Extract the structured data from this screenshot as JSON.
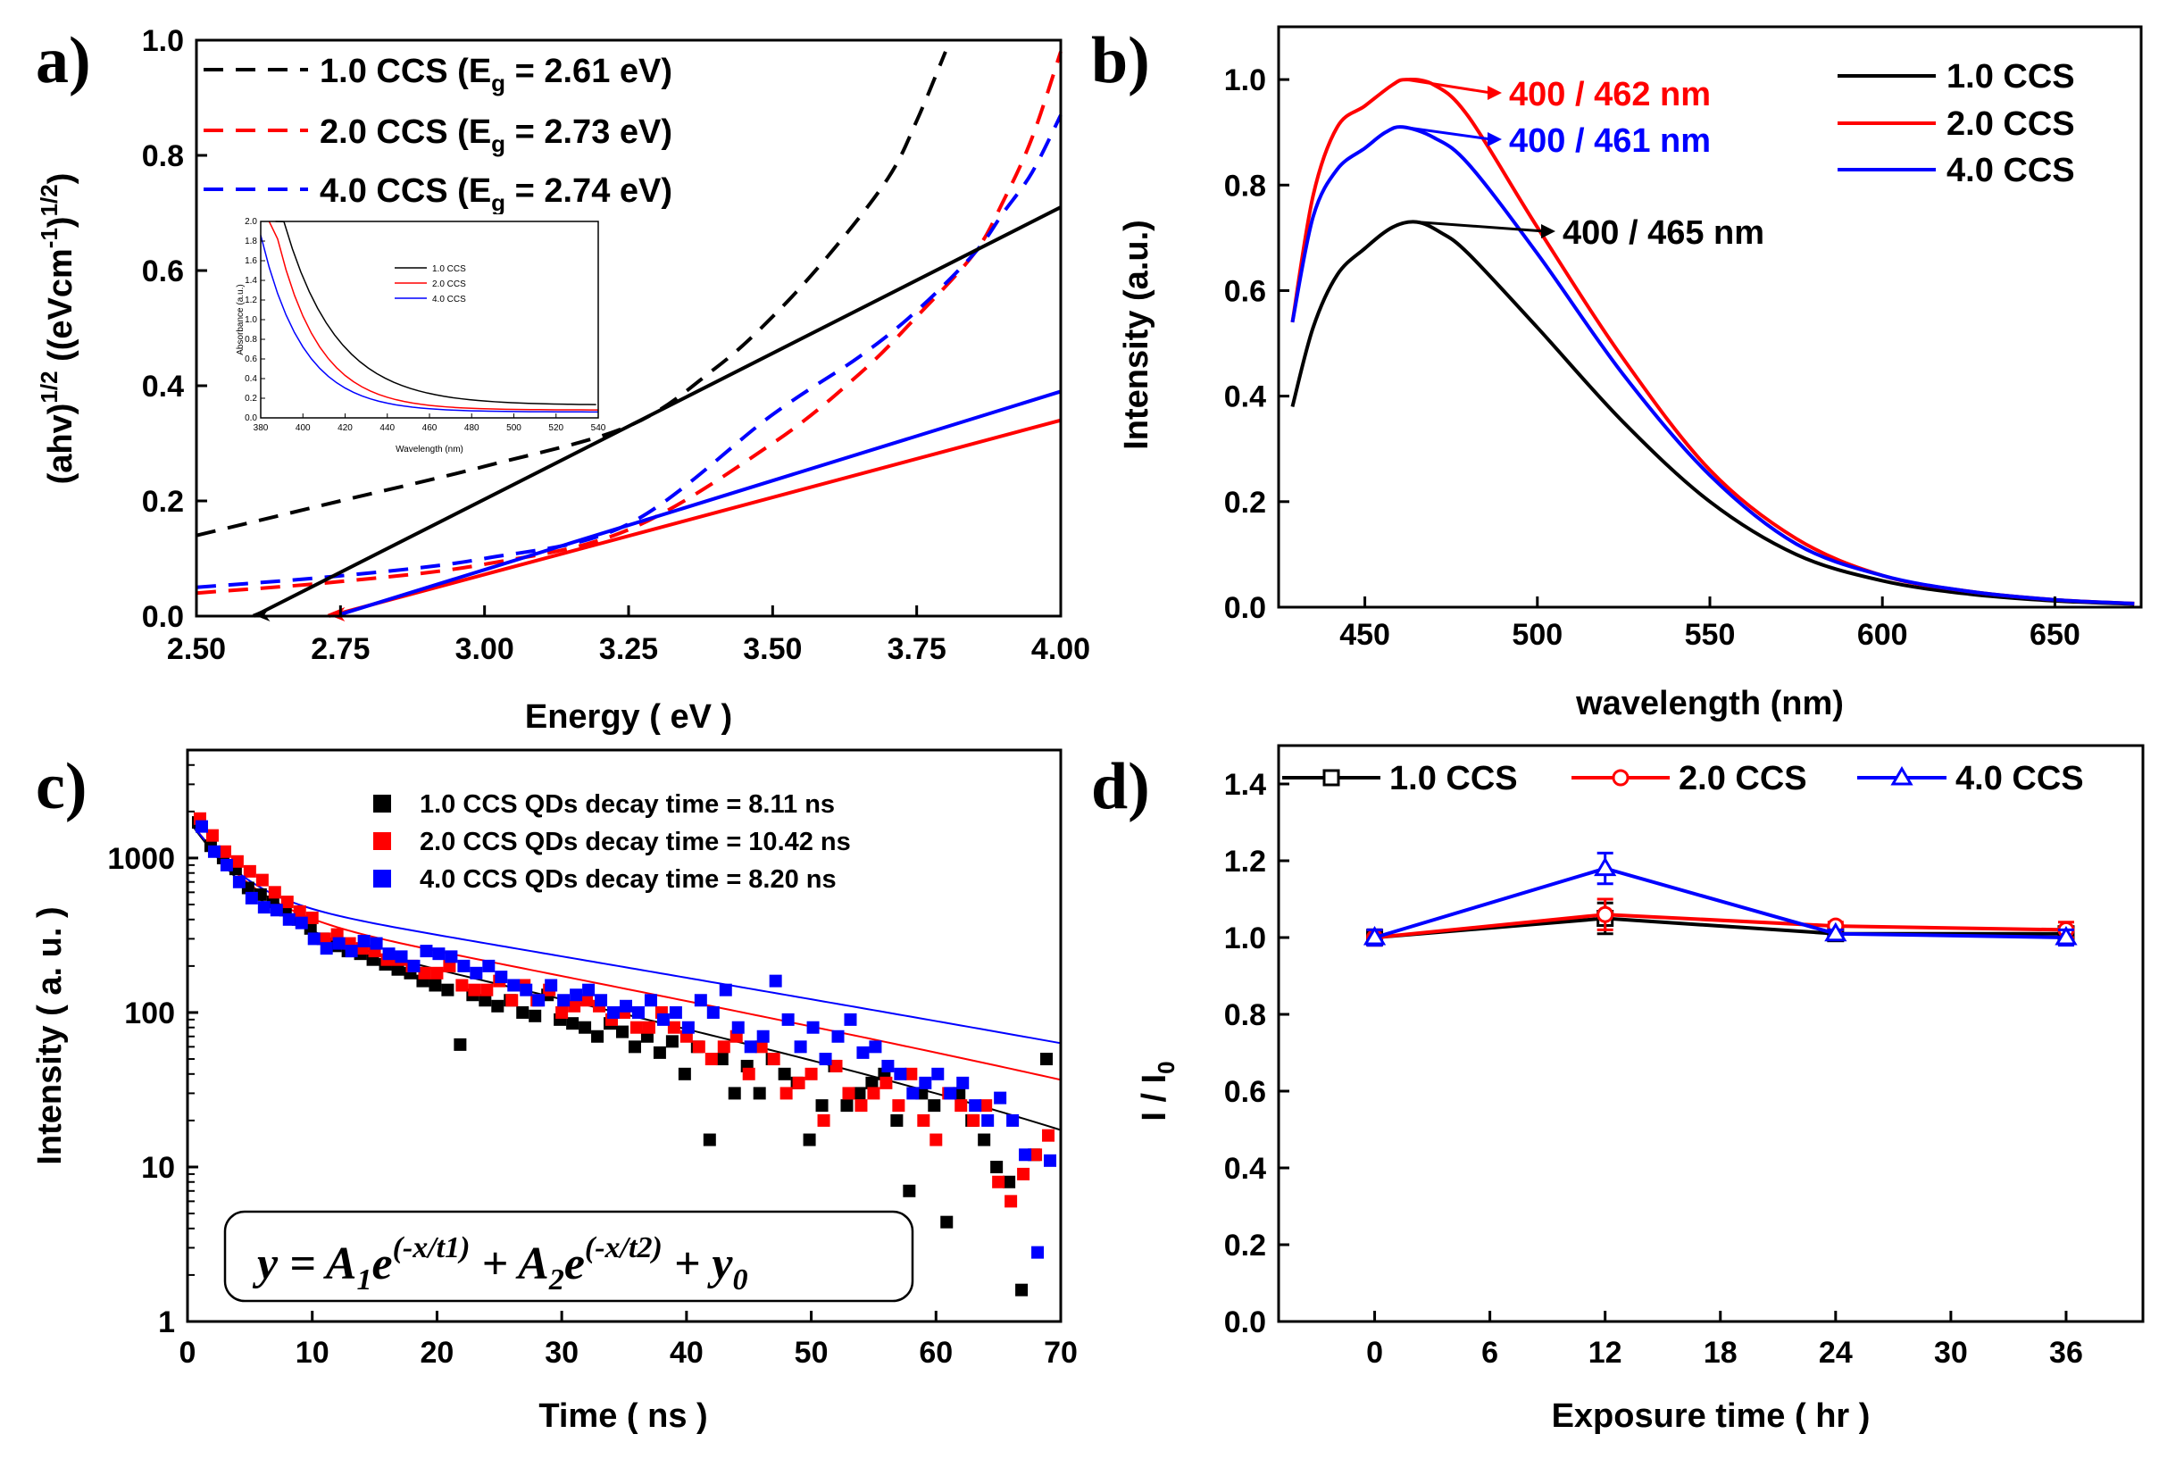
{
  "chart_data": [
    {
      "id": "a",
      "type": "line",
      "panel_label": "a)",
      "xlabel": "Energy ( eV )",
      "ylabel": "(ahv)^1/2 ((eVcm^-1)^1/2)",
      "ylabel_parts": {
        "base": "(ahv)",
        "sup1": "1/2",
        "mid": " ((eVcm",
        "sup2": "-1",
        "end": ")",
        "sup3": "1/2",
        "close": ")"
      },
      "xlim": [
        2.5,
        4.0
      ],
      "ylim": [
        0.0,
        1.0
      ],
      "xticks": [
        "2.50",
        "2.75",
        "3.00",
        "3.25",
        "3.50",
        "3.75",
        "4.00"
      ],
      "yticks": [
        "0.0",
        "0.2",
        "0.4",
        "0.6",
        "0.8",
        "1.0"
      ],
      "legend": [
        {
          "label": "1.0 CCS (E",
          "sub": "g",
          "tail": " = 2.61 eV)",
          "color": "#000000"
        },
        {
          "label": "2.0 CCS (E",
          "sub": "g",
          "tail": " = 2.73 eV)",
          "color": "#ff0000"
        },
        {
          "label": "4.0 CCS (E",
          "sub": "g",
          "tail": " = 2.74 eV)",
          "color": "#0000ff"
        }
      ],
      "series": [
        {
          "name": "1.0 CCS",
          "color": "#000000",
          "style": "dashed",
          "x": [
            2.5,
            2.75,
            3.0,
            3.25,
            3.4,
            3.5,
            3.6,
            3.7,
            3.75,
            3.8
          ],
          "y": [
            0.14,
            0.2,
            0.26,
            0.33,
            0.43,
            0.52,
            0.63,
            0.76,
            0.86,
            0.98
          ]
        },
        {
          "name": "2.0 CCS",
          "color": "#ff0000",
          "style": "dashed",
          "x": [
            2.5,
            2.75,
            3.0,
            3.25,
            3.5,
            3.65,
            3.75,
            3.85,
            3.9,
            3.95,
            4.0
          ],
          "y": [
            0.04,
            0.06,
            0.09,
            0.15,
            0.3,
            0.42,
            0.52,
            0.63,
            0.72,
            0.83,
            0.98
          ]
        },
        {
          "name": "4.0 CCS",
          "color": "#0000ff",
          "style": "dashed",
          "x": [
            2.5,
            2.75,
            3.0,
            3.25,
            3.5,
            3.65,
            3.75,
            3.85,
            3.9,
            3.95,
            4.0
          ],
          "y": [
            0.05,
            0.07,
            0.1,
            0.16,
            0.35,
            0.45,
            0.53,
            0.63,
            0.7,
            0.77,
            0.87
          ]
        },
        {
          "name": "1.0 CCS fit",
          "color": "#000000",
          "style": "solid",
          "x": [
            2.6,
            4.0
          ],
          "y": [
            0.0,
            0.71
          ]
        },
        {
          "name": "2.0 CCS fit",
          "color": "#ff0000",
          "style": "solid",
          "x": [
            2.73,
            4.0
          ],
          "y": [
            0.0,
            0.34
          ]
        },
        {
          "name": "4.0 CCS fit",
          "color": "#0000ff",
          "style": "solid",
          "x": [
            2.74,
            4.0
          ],
          "y": [
            0.0,
            0.39
          ]
        }
      ],
      "inset": {
        "xlabel": "Wavelength (nm)",
        "ylabel": "Absorbance (a.u.)",
        "xticks": [
          "380",
          "400",
          "420",
          "440",
          "460",
          "480",
          "500",
          "520",
          "540"
        ],
        "yticks": [
          "0.0",
          "0.2",
          "0.4",
          "0.6",
          "0.8",
          "1.0",
          "1.2",
          "1.4",
          "1.6",
          "1.8",
          "2.0"
        ],
        "legend": [
          "1.0 CCS",
          "2.0 CCS",
          "4.0 CCS"
        ]
      }
    },
    {
      "id": "b",
      "type": "line",
      "panel_label": "b)",
      "xlabel": "wavelength (nm)",
      "ylabel": "Intensity (a.u.)",
      "xlim": [
        425,
        675
      ],
      "ylim": [
        0.0,
        1.1
      ],
      "xticks": [
        "450",
        "500",
        "550",
        "600",
        "650"
      ],
      "yticks": [
        "0.0",
        "0.2",
        "0.4",
        "0.6",
        "0.8",
        "1.0"
      ],
      "legend": [
        "1.0 CCS",
        "2.0 CCS",
        "4.0 CCS"
      ],
      "series": [
        {
          "name": "1.0 CCS",
          "color": "#000000",
          "x": [
            429,
            435,
            442,
            450,
            458,
            465,
            472,
            480,
            500,
            525,
            550,
            575,
            600,
            625,
            650,
            673
          ],
          "y": [
            0.38,
            0.53,
            0.63,
            0.68,
            0.72,
            0.73,
            0.71,
            0.67,
            0.53,
            0.35,
            0.2,
            0.1,
            0.05,
            0.025,
            0.012,
            0.006
          ]
        },
        {
          "name": "2.0 CCS",
          "color": "#ff0000",
          "x": [
            429,
            435,
            442,
            450,
            458,
            462,
            470,
            480,
            500,
            525,
            550,
            575,
            600,
            625,
            650,
            673
          ],
          "y": [
            0.54,
            0.78,
            0.91,
            0.95,
            0.99,
            1.0,
            0.99,
            0.93,
            0.72,
            0.47,
            0.26,
            0.13,
            0.06,
            0.03,
            0.014,
            0.007
          ]
        },
        {
          "name": "4.0 CCS",
          "color": "#0000ff",
          "x": [
            429,
            435,
            442,
            450,
            456,
            461,
            470,
            480,
            500,
            525,
            550,
            575,
            600,
            625,
            650,
            673
          ],
          "y": [
            0.54,
            0.74,
            0.83,
            0.87,
            0.9,
            0.91,
            0.89,
            0.84,
            0.67,
            0.44,
            0.25,
            0.12,
            0.06,
            0.03,
            0.014,
            0.007
          ]
        }
      ],
      "annotations": [
        {
          "text": "400 / 462 nm",
          "color": "#ff0000",
          "x": 462,
          "y": 1.0
        },
        {
          "text": "400 / 461 nm",
          "color": "#0000ff",
          "x": 461,
          "y": 0.91
        },
        {
          "text": "400 / 465 nm",
          "color": "#000000",
          "x": 465,
          "y": 0.73
        }
      ]
    },
    {
      "id": "c",
      "type": "scatter",
      "panel_label": "c)",
      "xlabel": "Time ( ns )",
      "ylabel": "Intensity ( a. u. )",
      "xlim": [
        0,
        70
      ],
      "ylim": [
        1,
        5000
      ],
      "yscale": "log",
      "xticks": [
        "0",
        "10",
        "20",
        "30",
        "40",
        "50",
        "60",
        "70"
      ],
      "yticks": [
        "1",
        "10",
        "100",
        "1000"
      ],
      "legend": [
        "1.0 CCS QDs decay time = 8.11 ns",
        "2.0 CCS QDs decay time = 10.42 ns",
        "4.0 CCS QDs decay time = 8.20 ns"
      ],
      "formula": {
        "y": "y = A",
        "s1": "1",
        "e": "e",
        "p1": "(-x/t1)",
        "plus": " + A",
        "s2": "2",
        "e2": "e",
        "p2": "(-x/t2)",
        "tail": " + y",
        "s0": "0"
      },
      "series": [
        {
          "name": "1.0 CCS",
          "color": "#000000",
          "tau1": 3.0,
          "tau2": 24.0,
          "A1": 1350,
          "A2": 450,
          "y0": -7,
          "x": [
            1,
            2,
            3,
            4,
            5,
            6,
            7,
            8,
            9,
            10,
            11,
            12,
            13,
            14,
            15,
            16,
            17,
            18,
            19,
            20,
            21,
            22,
            23,
            24,
            25,
            26,
            27,
            28,
            29,
            30,
            31,
            32,
            33,
            34,
            35,
            36,
            37,
            38,
            39,
            40,
            41,
            42,
            43,
            44,
            45,
            46,
            47,
            48,
            49,
            50,
            51,
            52,
            53,
            54,
            55,
            56,
            57,
            58,
            59,
            60,
            61,
            62,
            63,
            64,
            65,
            66,
            67,
            68,
            69
          ],
          "y": [
            1700,
            1200,
            1000,
            850,
            640,
            580,
            520,
            460,
            400,
            350,
            300,
            270,
            250,
            240,
            220,
            205,
            190,
            180,
            160,
            150,
            140,
            62,
            130,
            120,
            110,
            120,
            100,
            95,
            130,
            90,
            85,
            80,
            70,
            85,
            75,
            60,
            70,
            55,
            65,
            40,
            60,
            15,
            50,
            30,
            45,
            30,
            50,
            40,
            35,
            15,
            25,
            45,
            25,
            30,
            35,
            40,
            20,
            7,
            30,
            25,
            4.4,
            30,
            20,
            15,
            10,
            8,
            1.6,
            12,
            50
          ]
        },
        {
          "name": "2.0 CCS",
          "color": "#ff0000",
          "tau1": 3.0,
          "tau2": 28.0,
          "A1": 1300,
          "A2": 520,
          "y0": -6,
          "x": [
            1,
            2,
            3,
            4,
            5,
            6,
            7,
            8,
            9,
            10,
            11,
            12,
            13,
            14,
            15,
            16,
            17,
            18,
            19,
            20,
            21,
            22,
            23,
            24,
            25,
            26,
            27,
            28,
            29,
            30,
            31,
            32,
            33,
            34,
            35,
            36,
            37,
            38,
            39,
            40,
            41,
            42,
            43,
            44,
            45,
            46,
            47,
            48,
            49,
            50,
            51,
            52,
            53,
            54,
            55,
            56,
            57,
            58,
            59,
            60,
            61,
            62,
            63,
            64,
            65,
            66,
            67,
            68,
            69
          ],
          "y": [
            1800,
            1400,
            1100,
            950,
            820,
            720,
            600,
            520,
            450,
            410,
            300,
            320,
            280,
            260,
            250,
            220,
            220,
            200,
            180,
            180,
            200,
            150,
            140,
            140,
            160,
            120,
            150,
            120,
            140,
            100,
            110,
            120,
            110,
            90,
            100,
            80,
            80,
            100,
            80,
            70,
            60,
            50,
            60,
            70,
            40,
            60,
            50,
            30,
            35,
            40,
            20,
            45,
            30,
            25,
            30,
            35,
            25,
            40,
            20,
            15,
            30,
            25,
            20,
            25,
            8,
            6,
            9,
            12,
            16
          ]
        },
        {
          "name": "4.0 CCS",
          "color": "#0000ff",
          "tau1": 2.8,
          "tau2": 32.0,
          "A1": 1200,
          "A2": 600,
          "y0": -4,
          "x": [
            1,
            2,
            3,
            4,
            5,
            6,
            7,
            8,
            9,
            10,
            11,
            12,
            13,
            14,
            15,
            16,
            17,
            18,
            19,
            20,
            21,
            22,
            23,
            24,
            25,
            26,
            27,
            28,
            29,
            30,
            31,
            32,
            33,
            34,
            35,
            36,
            37,
            38,
            39,
            40,
            41,
            42,
            43,
            44,
            45,
            46,
            47,
            48,
            49,
            50,
            51,
            52,
            53,
            54,
            55,
            56,
            57,
            58,
            59,
            60,
            61,
            62,
            63,
            64,
            65,
            66,
            67,
            68,
            69
          ],
          "y": [
            1600,
            1100,
            900,
            700,
            550,
            480,
            460,
            400,
            380,
            300,
            260,
            280,
            250,
            290,
            280,
            240,
            230,
            200,
            250,
            240,
            230,
            200,
            180,
            200,
            170,
            150,
            140,
            120,
            150,
            120,
            130,
            140,
            120,
            100,
            110,
            100,
            120,
            90,
            100,
            80,
            120,
            100,
            140,
            80,
            60,
            70,
            160,
            90,
            60,
            80,
            50,
            70,
            90,
            55,
            60,
            45,
            40,
            30,
            35,
            40,
            30,
            35,
            25,
            20,
            28,
            20,
            12,
            2.8,
            11
          ]
        }
      ]
    },
    {
      "id": "d",
      "type": "line",
      "panel_label": "d)",
      "xlabel": "Exposure time ( hr )",
      "ylabel": "I / I",
      "ylabel_sub": "0",
      "xlim": [
        -5,
        40
      ],
      "ylim": [
        0.0,
        1.5
      ],
      "xticks": [
        "0",
        "6",
        "12",
        "18",
        "24",
        "30",
        "36"
      ],
      "yticks": [
        "0.0",
        "0.2",
        "0.4",
        "0.6",
        "0.8",
        "1.0",
        "1.2",
        "1.4"
      ],
      "legend": [
        "1.0 CCS",
        "2.0 CCS",
        "4.0 CCS"
      ],
      "series": [
        {
          "name": "1.0 CCS",
          "color": "#000000",
          "marker": "square",
          "x": [
            0,
            12,
            24,
            36
          ],
          "y": [
            1.0,
            1.05,
            1.01,
            1.01
          ],
          "err": [
            0.02,
            0.04,
            0.01,
            0.01
          ]
        },
        {
          "name": "2.0 CCS",
          "color": "#ff0000",
          "marker": "circle",
          "x": [
            0,
            12,
            24,
            36
          ],
          "y": [
            1.0,
            1.06,
            1.03,
            1.02
          ],
          "err": [
            0.02,
            0.04,
            0.01,
            0.02
          ]
        },
        {
          "name": "4.0 CCS",
          "color": "#0000ff",
          "marker": "triangle",
          "x": [
            0,
            12,
            24,
            36
          ],
          "y": [
            1.0,
            1.18,
            1.01,
            1.0
          ],
          "err": [
            0.02,
            0.04,
            0.01,
            0.02
          ]
        }
      ]
    }
  ]
}
